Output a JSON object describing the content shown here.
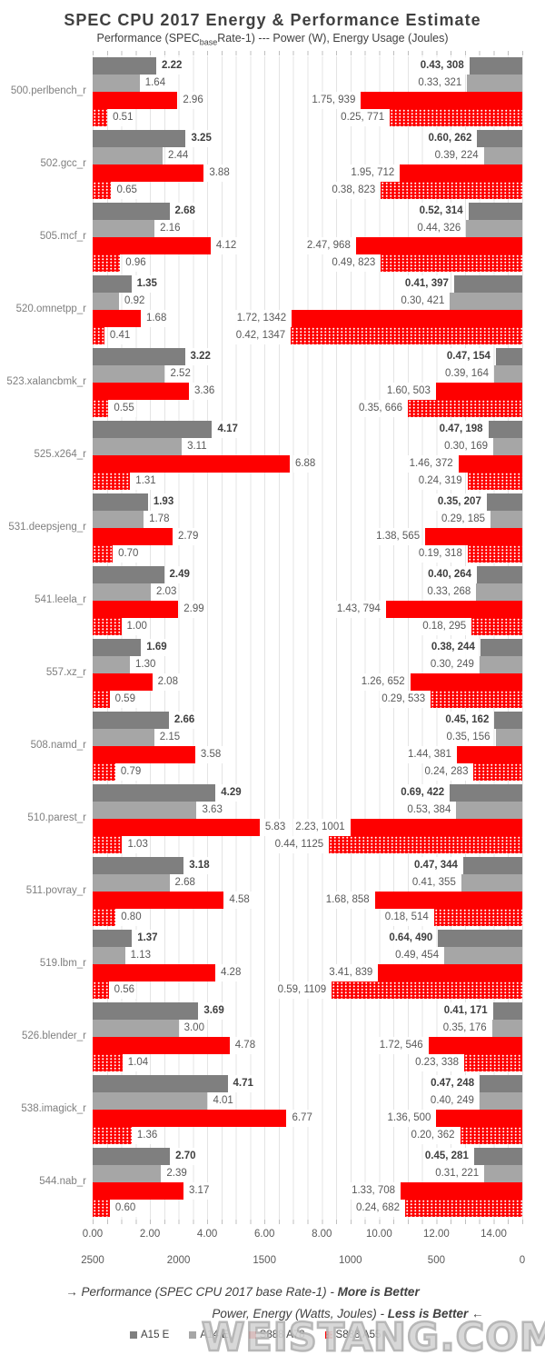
{
  "title": "SPEC CPU 2017 Energy & Performance Estimate",
  "subtitle": {
    "pre": "Performance (SPEC",
    "sub": "base",
    "post": "Rate-1) --- Power (W), Energy Usage (Joules)"
  },
  "chart_data": {
    "type": "bar",
    "orientation": "horizontal",
    "grid": true,
    "series_names": [
      "A15 E",
      "A14 E",
      "S888 A78",
      "S888 A55"
    ],
    "primary_axis": {
      "title": "Performance (SPEC CPU 2017 base Rate-1)",
      "min": 0,
      "max": 15,
      "direction": "left-to-right",
      "tick_labels": [
        "0.00",
        "2.00",
        "4.00",
        "6.00",
        "8.00",
        "10.00",
        "12.00",
        "14.00"
      ]
    },
    "secondary_axis": {
      "title": "Energy (Joules)",
      "min": 0,
      "max": 2500,
      "direction": "right-to-left",
      "tick_labels": [
        "2500",
        "2000",
        "1500",
        "1000",
        "500",
        "0"
      ]
    },
    "benchmarks": [
      {
        "name": "500.perlbench_r",
        "perf": [
          2.22,
          1.64,
          2.96,
          0.51
        ],
        "power": [
          0.43,
          0.33,
          1.75,
          0.25
        ],
        "energy": [
          308,
          321,
          939,
          771
        ]
      },
      {
        "name": "502.gcc_r",
        "perf": [
          3.25,
          2.44,
          3.88,
          0.65
        ],
        "power": [
          0.6,
          0.39,
          1.95,
          0.38
        ],
        "energy": [
          262,
          224,
          712,
          823
        ]
      },
      {
        "name": "505.mcf_r",
        "perf": [
          2.68,
          2.16,
          4.12,
          0.96
        ],
        "power": [
          0.52,
          0.44,
          2.47,
          0.49
        ],
        "energy": [
          314,
          326,
          968,
          823
        ]
      },
      {
        "name": "520.omnetpp_r",
        "perf": [
          1.35,
          0.92,
          1.68,
          0.41
        ],
        "power": [
          0.41,
          0.3,
          1.72,
          0.42
        ],
        "energy": [
          397,
          421,
          1342,
          1347
        ]
      },
      {
        "name": "523.xalancbmk_r",
        "perf": [
          3.22,
          2.52,
          3.36,
          0.55
        ],
        "power": [
          0.47,
          0.39,
          1.6,
          0.35
        ],
        "energy": [
          154,
          164,
          503,
          666
        ]
      },
      {
        "name": "525.x264_r",
        "perf": [
          4.17,
          3.11,
          6.88,
          1.31
        ],
        "power": [
          0.47,
          0.3,
          1.46,
          0.24
        ],
        "energy": [
          198,
          169,
          372,
          319
        ]
      },
      {
        "name": "531.deepsjeng_r",
        "perf": [
          1.93,
          1.78,
          2.79,
          0.7
        ],
        "power": [
          0.35,
          0.29,
          1.38,
          0.19
        ],
        "energy": [
          207,
          185,
          565,
          318
        ]
      },
      {
        "name": "541.leela_r",
        "perf": [
          2.49,
          2.03,
          2.99,
          1.0
        ],
        "power": [
          0.4,
          0.33,
          1.43,
          0.18
        ],
        "energy": [
          264,
          268,
          794,
          295
        ]
      },
      {
        "name": "557.xz_r",
        "perf": [
          1.69,
          1.3,
          2.08,
          0.59
        ],
        "power": [
          0.38,
          0.3,
          1.26,
          0.29
        ],
        "energy": [
          244,
          249,
          652,
          533
        ]
      },
      {
        "name": "508.namd_r",
        "perf": [
          2.66,
          2.15,
          3.58,
          0.79
        ],
        "power": [
          0.45,
          0.35,
          1.44,
          0.24
        ],
        "energy": [
          162,
          156,
          381,
          283
        ]
      },
      {
        "name": "510.parest_r",
        "perf": [
          4.29,
          3.63,
          5.83,
          1.03
        ],
        "power": [
          0.69,
          0.53,
          2.23,
          0.44
        ],
        "energy": [
          422,
          384,
          1001,
          1125
        ]
      },
      {
        "name": "511.povray_r",
        "perf": [
          3.18,
          2.68,
          4.58,
          0.8
        ],
        "power": [
          0.47,
          0.41,
          1.68,
          0.18
        ],
        "energy": [
          344,
          355,
          858,
          514
        ]
      },
      {
        "name": "519.lbm_r",
        "perf": [
          1.37,
          1.13,
          4.28,
          0.56
        ],
        "power": [
          0.64,
          0.49,
          3.41,
          0.59
        ],
        "energy": [
          490,
          454,
          839,
          1109
        ]
      },
      {
        "name": "526.blender_r",
        "perf": [
          3.69,
          3.0,
          4.78,
          1.04
        ],
        "power": [
          0.41,
          0.35,
          1.72,
          0.23
        ],
        "energy": [
          171,
          176,
          546,
          338
        ]
      },
      {
        "name": "538.imagick_r",
        "perf": [
          4.71,
          4.01,
          6.77,
          1.36
        ],
        "power": [
          0.47,
          0.4,
          1.36,
          0.2
        ],
        "energy": [
          248,
          249,
          500,
          362
        ]
      },
      {
        "name": "544.nab_r",
        "perf": [
          2.7,
          2.39,
          3.17,
          0.6
        ],
        "power": [
          0.45,
          0.31,
          1.33,
          0.24
        ],
        "energy": [
          281,
          221,
          708,
          682
        ]
      }
    ]
  },
  "footer": {
    "line1_arrow": "→",
    "line1_text": " Performance (SPEC CPU 2017 base Rate-1) - ",
    "line1_bold": "More is Better",
    "line2_text": "Power, Energy (Watts, Joules) - ",
    "line2_bold": "Less is Better",
    "line2_arrow": " ←"
  },
  "legend": [
    {
      "label": "A15 E",
      "color": "#7f7f7f",
      "pattern": "solid"
    },
    {
      "label": "A14 E",
      "color": "#a6a6a6",
      "pattern": "solid"
    },
    {
      "label": "S888 A78",
      "color": "#fe0000",
      "pattern": "solid"
    },
    {
      "label": "S888 A55",
      "color": "#fe0000",
      "pattern": "dotted"
    }
  ],
  "watermark": "WEISTANG.COM",
  "colors": {
    "a15e": "#7f7f7f",
    "a14e": "#a6a6a6",
    "s888a78": "#fe0000",
    "s888a55_base": "#fe0000",
    "gridline": "#e4e4e4",
    "text_primary": "#404040",
    "text_secondary": "#595959",
    "benchmark_label": "#7f7f7f",
    "watermark": "#b0b0b0"
  }
}
